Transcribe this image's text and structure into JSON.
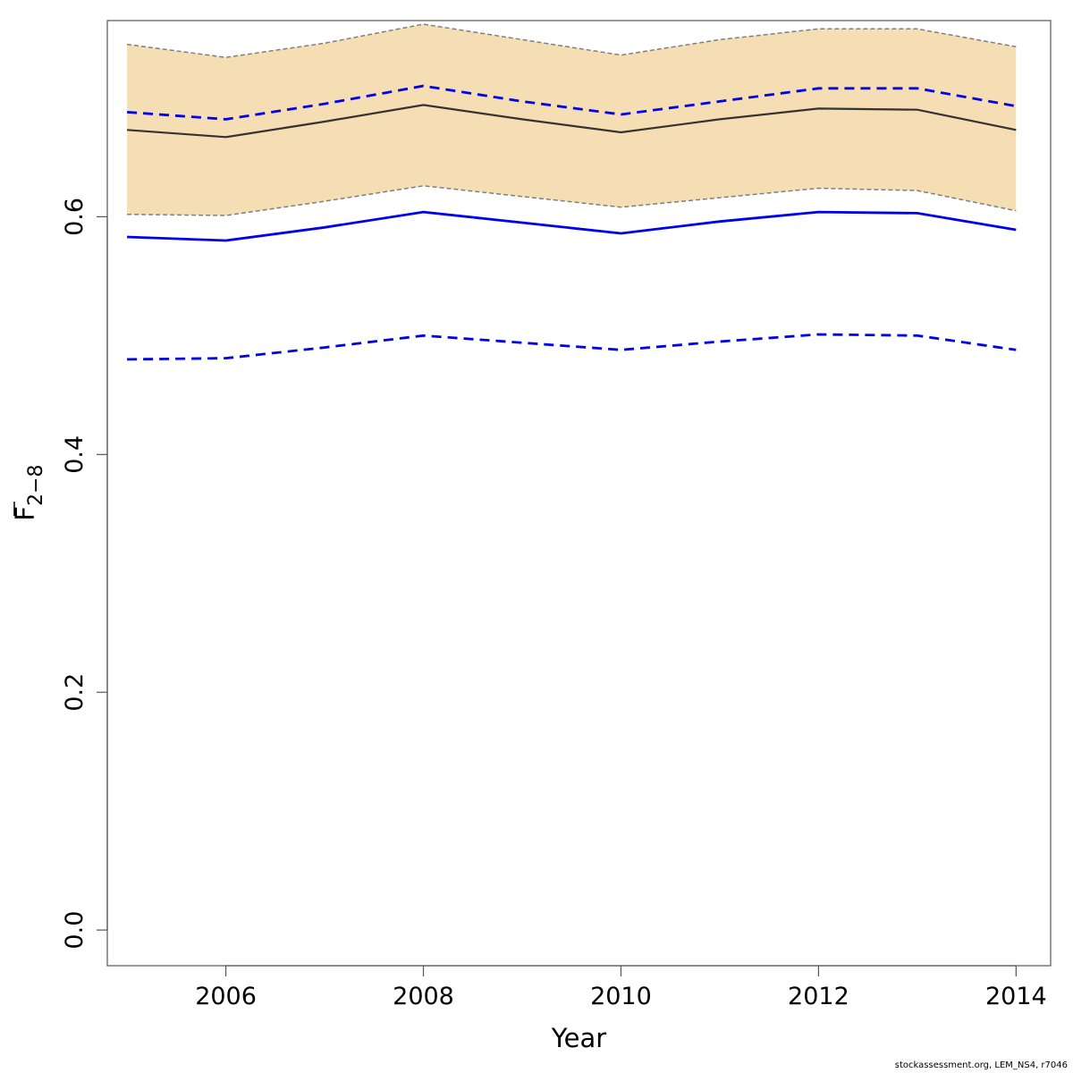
{
  "chart_data": {
    "type": "line",
    "xlabel": "Year",
    "ylabel": {
      "main": "F",
      "subscript": "2−8",
      "overline": true
    },
    "xlim": [
      2004.8,
      2014.35
    ],
    "ylim": [
      -0.03,
      0.765
    ],
    "xticks": [
      2006,
      2008,
      2010,
      2012,
      2014
    ],
    "yticks": [
      0.0,
      0.2,
      0.4,
      0.6
    ],
    "ytick_labels": [
      "0.0",
      "0.2",
      "0.4",
      "0.6"
    ],
    "x": [
      2005,
      2006,
      2007,
      2008,
      2009,
      2010,
      2011,
      2012,
      2013,
      2014
    ],
    "series": [
      {
        "style": "band",
        "color": "#f5deb3",
        "border_color": "#7f7f7f",
        "lower": [
          0.602,
          0.601,
          0.613,
          0.626,
          0.617,
          0.608,
          0.616,
          0.624,
          0.622,
          0.605
        ],
        "upper": [
          0.745,
          0.734,
          0.746,
          0.762,
          0.749,
          0.736,
          0.749,
          0.758,
          0.758,
          0.743
        ]
      },
      {
        "style": "solid",
        "color": "#333333",
        "values": [
          0.673,
          0.667,
          0.68,
          0.694,
          0.682,
          0.671,
          0.682,
          0.691,
          0.69,
          0.673
        ]
      },
      {
        "style": "dashed",
        "color": "#0000ee",
        "values": [
          0.688,
          0.682,
          0.695,
          0.71,
          0.697,
          0.686,
          0.697,
          0.708,
          0.708,
          0.693
        ]
      },
      {
        "style": "solid",
        "color": "#0000ee",
        "values": [
          0.583,
          0.58,
          0.591,
          0.604,
          0.595,
          0.586,
          0.596,
          0.604,
          0.603,
          0.589
        ]
      },
      {
        "style": "dashed",
        "color": "#0000ee",
        "values": [
          0.48,
          0.481,
          0.49,
          0.5,
          0.494,
          0.488,
          0.495,
          0.501,
          0.5,
          0.488
        ]
      }
    ]
  },
  "footer": "stockassessment.org, LEM_NS4, r7046"
}
